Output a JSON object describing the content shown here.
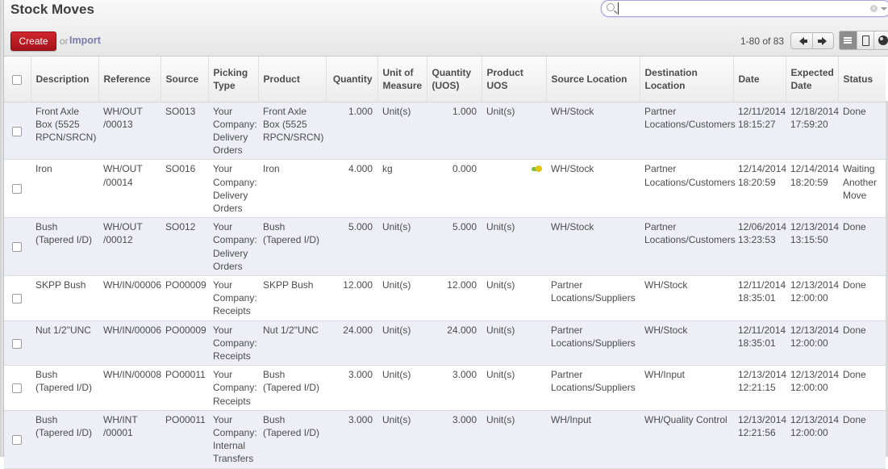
{
  "header": {
    "title": "Stock Moves",
    "create_label": "Create",
    "or_label": "or",
    "import_label": "Import",
    "search": {
      "value": "",
      "placeholder": ""
    },
    "pager": {
      "text": "1-80 of 83"
    },
    "views": [
      "list",
      "form",
      "map"
    ],
    "active_view": "list"
  },
  "colors": {
    "create_button": "#b81b22",
    "import_link": "#7c7bad",
    "odd_row": "#eeeef6",
    "search_border": "#aaa3d6"
  },
  "table": {
    "columns": [
      "Description",
      "Reference",
      "Source",
      "Picking Type",
      "Product",
      "Quantity",
      "Unit of Measure",
      "Quantity (UOS)",
      "Product UOS",
      "Source Location",
      "Destination Location",
      "Date",
      "Expected Date",
      "Status"
    ],
    "rows": [
      {
        "description": "Front Axle Box (5525 RPCN/SRCN)",
        "reference": "WH/OUT /00013",
        "source": "SO013",
        "picking_type": "Your Company: Delivery Orders",
        "product": "Front Axle Box (5525 RPCN/SRCN)",
        "quantity": "1.000",
        "uom": "Unit(s)",
        "qty_uos": "1.000",
        "product_uos": "Unit(s)",
        "warning": false,
        "source_location": "WH/Stock",
        "dest_location": "Partner Locations/Customers",
        "date": "12/11/2014 18:15:27",
        "expected_date": "12/18/2014 17:59:20",
        "status": "Done"
      },
      {
        "description": "Iron",
        "reference": "WH/OUT /00014",
        "source": "SO016",
        "picking_type": "Your Company: Delivery Orders",
        "product": "Iron",
        "quantity": "4.000",
        "uom": "kg",
        "qty_uos": "0.000",
        "product_uos": "",
        "warning": true,
        "source_location": "WH/Stock",
        "dest_location": "Partner Locations/Customers",
        "date": "12/14/2014 18:20:59",
        "expected_date": "12/14/2014 18:20:59",
        "status": "Waiting Another Move"
      },
      {
        "description": "Bush (Tapered I/D)",
        "reference": "WH/OUT /00012",
        "source": "SO012",
        "picking_type": "Your Company: Delivery Orders",
        "product": "Bush (Tapered I/D)",
        "quantity": "5.000",
        "uom": "Unit(s)",
        "qty_uos": "5.000",
        "product_uos": "Unit(s)",
        "warning": false,
        "source_location": "WH/Stock",
        "dest_location": "Partner Locations/Customers",
        "date": "12/06/2014 13:23:53",
        "expected_date": "12/13/2014 13:15:50",
        "status": "Done"
      },
      {
        "description": "SKPP Bush",
        "reference": "WH/IN/00006",
        "source": "PO00009",
        "picking_type": "Your Company: Receipts",
        "product": "SKPP Bush",
        "quantity": "12.000",
        "uom": "Unit(s)",
        "qty_uos": "12.000",
        "product_uos": "Unit(s)",
        "warning": false,
        "source_location": "Partner Locations/Suppliers",
        "dest_location": "WH/Stock",
        "date": "12/11/2014 18:35:01",
        "expected_date": "12/13/2014 12:00:00",
        "status": "Done"
      },
      {
        "description": "Nut 1/2\"UNC",
        "reference": "WH/IN/00006",
        "source": "PO00009",
        "picking_type": "Your Company: Receipts",
        "product": "Nut 1/2\"UNC",
        "quantity": "24.000",
        "uom": "Unit(s)",
        "qty_uos": "24.000",
        "product_uos": "Unit(s)",
        "warning": false,
        "source_location": "Partner Locations/Suppliers",
        "dest_location": "WH/Stock",
        "date": "12/11/2014 18:35:01",
        "expected_date": "12/13/2014 12:00:00",
        "status": "Done"
      },
      {
        "description": "Bush (Tapered I/D)",
        "reference": "WH/IN/00008",
        "source": "PO00011",
        "picking_type": "Your Company: Receipts",
        "product": "Bush (Tapered I/D)",
        "quantity": "3.000",
        "uom": "Unit(s)",
        "qty_uos": "3.000",
        "product_uos": "Unit(s)",
        "warning": false,
        "source_location": "Partner Locations/Suppliers",
        "dest_location": "WH/Input",
        "date": "12/13/2014 12:21:15",
        "expected_date": "12/13/2014 12:00:00",
        "status": "Done"
      },
      {
        "description": "Bush (Tapered I/D)",
        "reference": "WH/INT /00001",
        "source": "PO00011",
        "picking_type": "Your Company: Internal Transfers",
        "product": "Bush (Tapered I/D)",
        "quantity": "3.000",
        "uom": "Unit(s)",
        "qty_uos": "3.000",
        "product_uos": "Unit(s)",
        "warning": false,
        "source_location": "WH/Input",
        "dest_location": "WH/Quality Control",
        "date": "12/13/2014 12:21:56",
        "expected_date": "12/13/2014 12:00:00",
        "status": "Done"
      }
    ]
  }
}
